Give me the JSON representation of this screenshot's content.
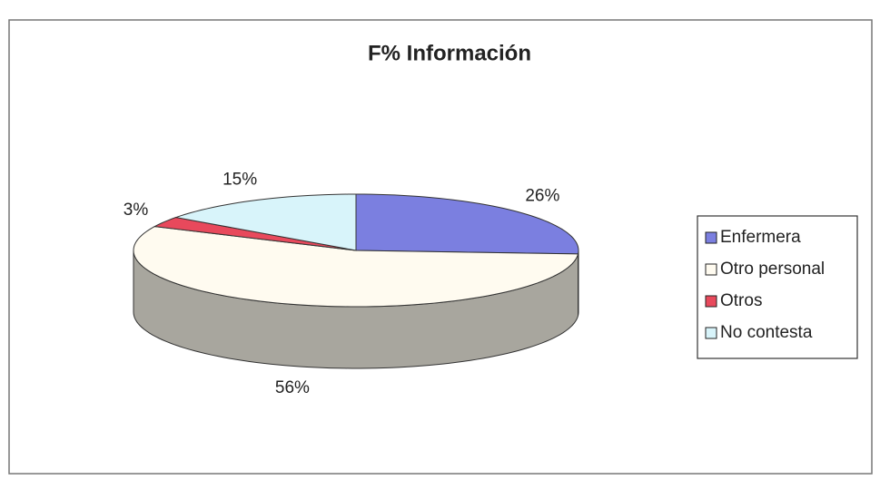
{
  "chart_data": {
    "type": "pie3d",
    "title": "F% Información",
    "categories": [
      "Enfermera",
      "Otro personal",
      "Otros",
      "No contesta"
    ],
    "values": [
      26,
      56,
      3,
      15
    ],
    "value_labels": [
      "26%",
      "56%",
      "3%",
      "15%"
    ],
    "colors": [
      "#7b7fe0",
      "#fffbf0",
      "#e8495c",
      "#d8f4fa"
    ],
    "legend": "right"
  }
}
